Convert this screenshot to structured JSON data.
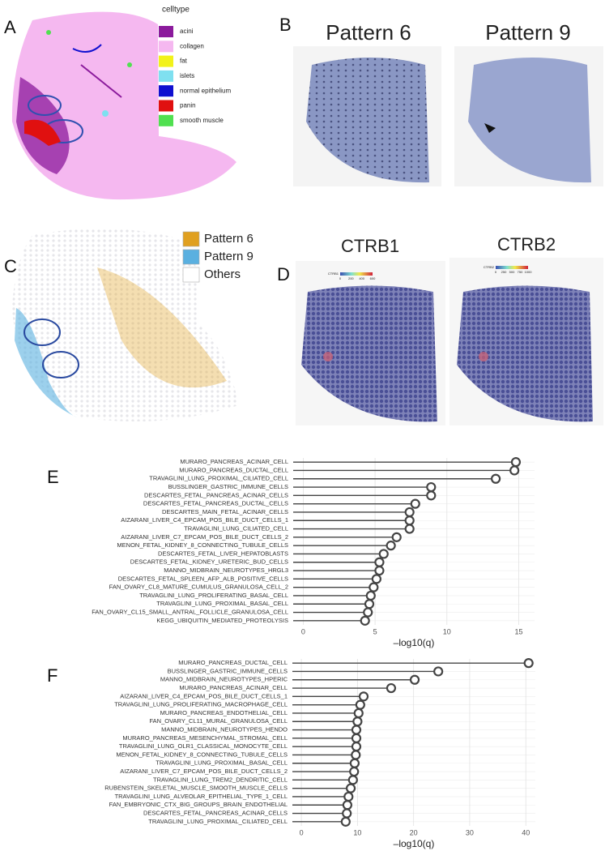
{
  "panels": {
    "labels": [
      "A",
      "B",
      "C",
      "D",
      "E",
      "F"
    ],
    "a": {
      "legend_title": "celltype",
      "items": [
        {
          "name": "acini",
          "color": "#8b1a9c"
        },
        {
          "name": "collagen",
          "color": "#f5b8f0"
        },
        {
          "name": "fat",
          "color": "#f2f21a"
        },
        {
          "name": "islets",
          "color": "#7fe0f0"
        },
        {
          "name": "normal epithelium",
          "color": "#1010d0"
        },
        {
          "name": "panin",
          "color": "#e01010"
        },
        {
          "name": "smooth muscle",
          "color": "#50e050"
        }
      ]
    },
    "b": {
      "titles": [
        "Pattern 6",
        "Pattern 9"
      ]
    },
    "c": {
      "items": [
        {
          "name": "Pattern 6",
          "color": "#e0a020"
        },
        {
          "name": "Pattern 9",
          "color": "#5ab0e0"
        },
        {
          "name": "Others",
          "color": "#ffffff"
        }
      ]
    },
    "d": {
      "titles": [
        "CTRB1",
        "CTRB2"
      ],
      "scales": [
        {
          "name": "CTRB1",
          "ticks": [
            "0",
            "200",
            "400",
            "600"
          ]
        },
        {
          "name": "CTRB2",
          "ticks": [
            "0",
            "250",
            "500",
            "750",
            "1000"
          ]
        }
      ]
    }
  },
  "chart_data": [
    {
      "type": "lollipop",
      "xlabel": "–log10(q)",
      "xlim": [
        -0.7,
        16.1
      ],
      "xticks": [
        0,
        5,
        10,
        15
      ],
      "grid": true,
      "color": "#444444",
      "categories": [
        "MURARO_PANCREAS_ACINAR_CELL",
        "MURARO_PANCREAS_DUCTAL_CELL",
        "TRAVAGLINI_LUNG_PROXIMAL_CILIATED_CELL",
        "BUSSLINGER_GASTRIC_IMMUNE_CELLS",
        "DESCARTES_FETAL_PANCREAS_ACINAR_CELLS",
        "DESCARTES_FETAL_PANCREAS_DUCTAL_CELLS",
        "DESCARTES_MAIN_FETAL_ACINAR_CELLS",
        "AIZARANI_LIVER_C4_EPCAM_POS_BILE_DUCT_CELLS_1",
        "TRAVAGLINI_LUNG_CILIATED_CELL",
        "AIZARANI_LIVER_C7_EPCAM_POS_BILE_DUCT_CELLS_2",
        "MENON_FETAL_KIDNEY_8_CONNECTING_TUBULE_CELLS",
        "DESCARTES_FETAL_LIVER_HEPATOBLASTS",
        "DESCARTES_FETAL_KIDNEY_URETERIC_BUD_CELLS",
        "MANNO_MIDBRAIN_NEUROTYPES_HRGL3",
        "DESCARTES_FETAL_SPLEEN_AFP_ALB_POSITIVE_CELLS",
        "FAN_OVARY_CL8_MATURE_CUMULUS_GRANULOSA_CELL_2",
        "TRAVAGLINI_LUNG_PROLIFERATING_BASAL_CELL",
        "TRAVAGLINI_LUNG_PROXIMAL_BASAL_CELL",
        "FAN_OVARY_CL15_SMALL_ANTRAL_FOLLICLE_GRANULOSA_CELL",
        "KEGG_UBIQUITIN_MEDIATED_PROTEOLYSIS"
      ],
      "values": [
        14.8,
        14.7,
        13.4,
        8.9,
        8.9,
        7.8,
        7.4,
        7.4,
        7.4,
        6.5,
        6.1,
        5.6,
        5.3,
        5.3,
        5.1,
        4.9,
        4.7,
        4.6,
        4.5,
        4.3
      ]
    },
    {
      "type": "lollipop",
      "xlabel": "–log10(q)",
      "xlim": [
        -1.6,
        41.7
      ],
      "xticks": [
        0,
        10,
        20,
        30,
        40
      ],
      "grid": true,
      "color": "#444444",
      "categories": [
        "MURARO_PANCREAS_DUCTAL_CELL",
        "BUSSLINGER_GASTRIC_IMMUNE_CELLS",
        "MANNO_MIDBRAIN_NEUROTYPES_HPERIC",
        "MURARO_PANCREAS_ACINAR_CELL",
        "AIZARANI_LIVER_C4_EPCAM_POS_BILE_DUCT_CELLS_1",
        "TRAVAGLINI_LUNG_PROLIFERATING_MACROPHAGE_CELL",
        "MURARO_PANCREAS_ENDOTHELIAL_CELL",
        "FAN_OVARY_CL11_MURAL_GRANULOSA_CELL",
        "MANNO_MIDBRAIN_NEUROTYPES_HENDO",
        "MURARO_PANCREAS_MESENCHYMAL_STROMAL_CELL",
        "TRAVAGLINI_LUNG_OLR1_CLASSICAL_MONOCYTE_CELL",
        "MENON_FETAL_KIDNEY_8_CONNECTING_TUBULE_CELLS",
        "TRAVAGLINI_LUNG_PROXIMAL_BASAL_CELL",
        "AIZARANI_LIVER_C7_EPCAM_POS_BILE_DUCT_CELLS_2",
        "TRAVAGLINI_LUNG_TREM2_DENDRITIC_CELL",
        "RUBENSTEIN_SKELETAL_MUSCLE_SMOOTH_MUSCLE_CELLS",
        "TRAVAGLINI_LUNG_ALVEOLAR_EPITHELIAL_TYPE_1_CELL",
        "FAN_EMBRYONIC_CTX_BIG_GROUPS_BRAIN_ENDOTHELIAL",
        "DESCARTES_FETAL_PANCREAS_ACINAR_CELLS",
        "TRAVAGLINI_LUNG_PROXIMAL_CILIATED_CELL"
      ],
      "values": [
        40.5,
        24.4,
        20.2,
        16.0,
        11.1,
        10.5,
        10.2,
        10.0,
        9.8,
        9.8,
        9.8,
        9.7,
        9.5,
        9.4,
        9.2,
        8.8,
        8.4,
        8.2,
        8.1,
        7.9
      ]
    }
  ]
}
